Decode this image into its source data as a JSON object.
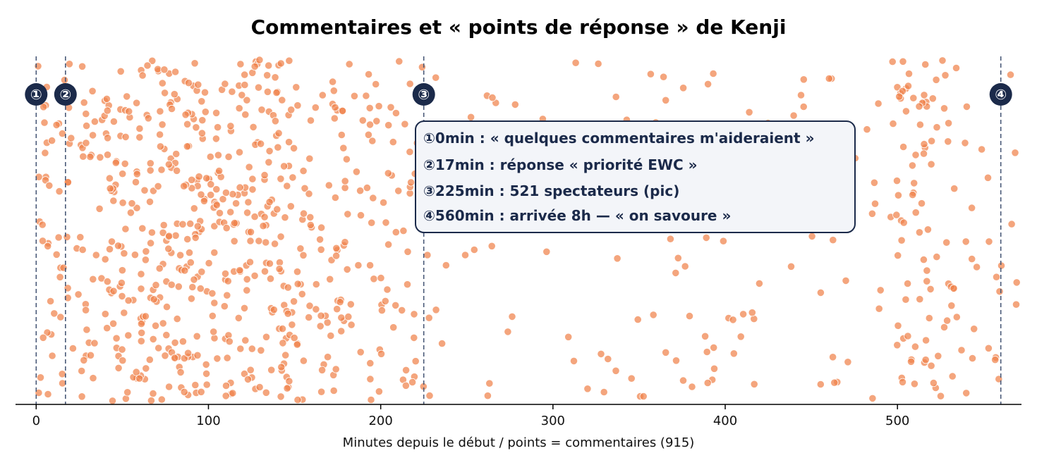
{
  "chart_data": {
    "type": "scatter",
    "title": "Commentaires et « points de réponse » de Kenji",
    "xlabel": "Minutes depuis le début / points = commentaires (915)",
    "ylabel": "",
    "xlim": [
      -12,
      572
    ],
    "ylim": [
      0,
      1
    ],
    "xticks": [
      0,
      100,
      200,
      300,
      400,
      500
    ],
    "yaxis_visible": false,
    "grid": false,
    "point_count": 915,
    "point_color": "#f0824b",
    "marker_color": "#1b2a4a",
    "annotation_box_bg": "#f3f5f9",
    "note": "",
    "density_profile": [
      {
        "from": 0,
        "to": 20,
        "count": 48
      },
      {
        "from": 20,
        "to": 40,
        "count": 38
      },
      {
        "from": 40,
        "to": 180,
        "count": 500
      },
      {
        "from": 180,
        "to": 230,
        "count": 85
      },
      {
        "from": 230,
        "to": 500,
        "count": 135
      },
      {
        "from": 500,
        "to": 535,
        "count": 84
      },
      {
        "from": 535,
        "to": 570,
        "count": 25
      }
    ],
    "markers": [
      {
        "x": 0,
        "label": "①"
      },
      {
        "x": 17,
        "label": "②"
      },
      {
        "x": 225,
        "label": "③"
      },
      {
        "x": 560,
        "label": "④"
      }
    ],
    "annotations": [
      "①0min : « quelques commentaires m'aideraient »",
      "②17min : réponse « priorité EWC »",
      "③225min : 521 spectateurs (pic)",
      "④560min : arrivée 8h — « on savoure »"
    ]
  }
}
